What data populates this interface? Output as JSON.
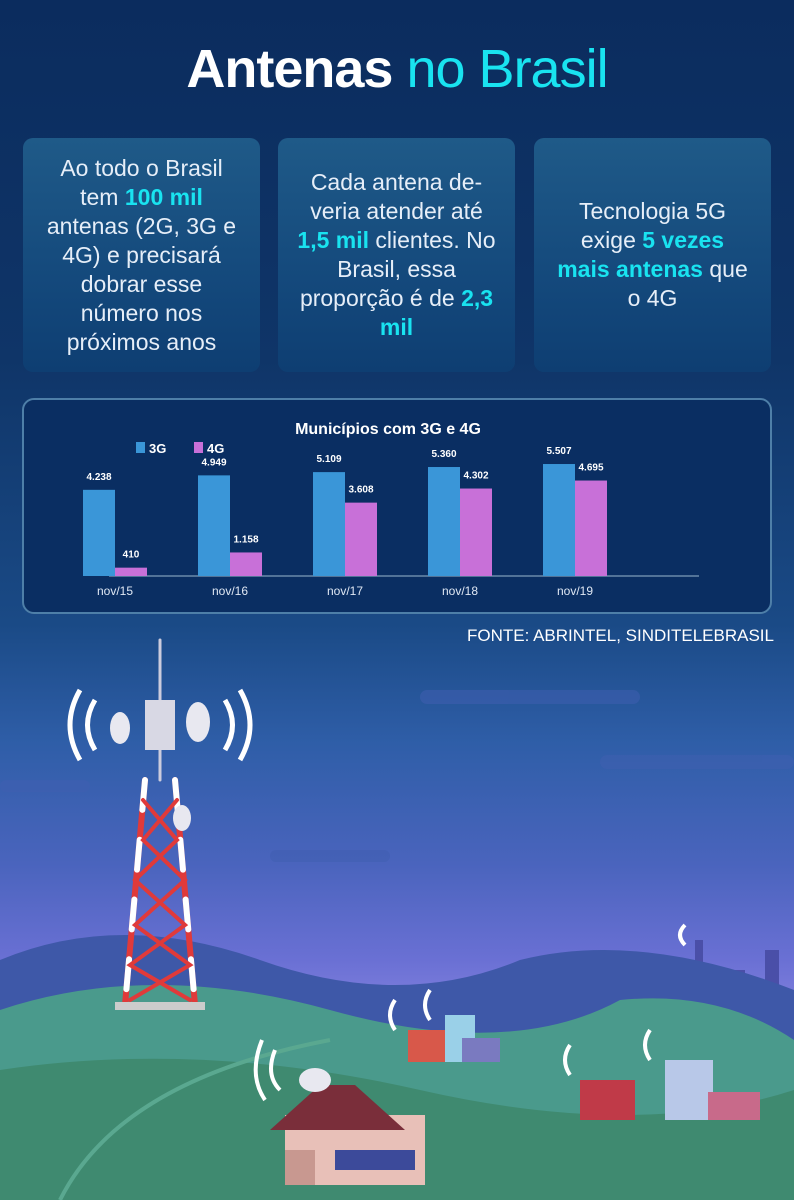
{
  "header": {
    "title_bold": "Antenas",
    "title_accent": "no Brasil"
  },
  "cards": [
    {
      "parts": [
        "Ao todo o Brasil tem ",
        "100 mil",
        " antenas (2G, 3G e 4G) e precisará dobrar esse número nos próximos anos"
      ]
    },
    {
      "parts": [
        "Cada antena de-veria atender até ",
        "1,5 mil",
        " clientes. No Brasil, essa proporção é de ",
        "2,3 mil",
        ""
      ]
    },
    {
      "parts": [
        "Tecnologia 5G exige ",
        "5 vezes mais antenas",
        " que o 4G"
      ]
    }
  ],
  "colors": {
    "accent": "#19e3f0",
    "series_3g": "#3a96d8",
    "series_4g": "#c870d8",
    "background": "#0b2c5e"
  },
  "chart_data": {
    "type": "bar",
    "title": "Municípios com 3G e 4G",
    "categories": [
      "nov/15",
      "nov/16",
      "nov/17",
      "nov/18",
      "nov/19"
    ],
    "series": [
      {
        "name": "3G",
        "values": [
          4238,
          4949,
          5109,
          5360,
          5507
        ],
        "labels": [
          "4.238",
          "4.949",
          "5.109",
          "5.360",
          "5.507"
        ]
      },
      {
        "name": "4G",
        "values": [
          410,
          1158,
          3608,
          4302,
          4695
        ],
        "labels": [
          "410",
          "1.158",
          "3.608",
          "4.302",
          "4.695"
        ]
      }
    ],
    "ylim": [
      0,
      6000
    ],
    "grid": false,
    "legend": "top-left"
  },
  "source": "FONTE: ABRINTEL, SINDITELEBRASIL",
  "illustration": {
    "icons": [
      "cell-tower",
      "wifi-signal",
      "satellite-dish",
      "house",
      "buildings",
      "hills"
    ]
  }
}
